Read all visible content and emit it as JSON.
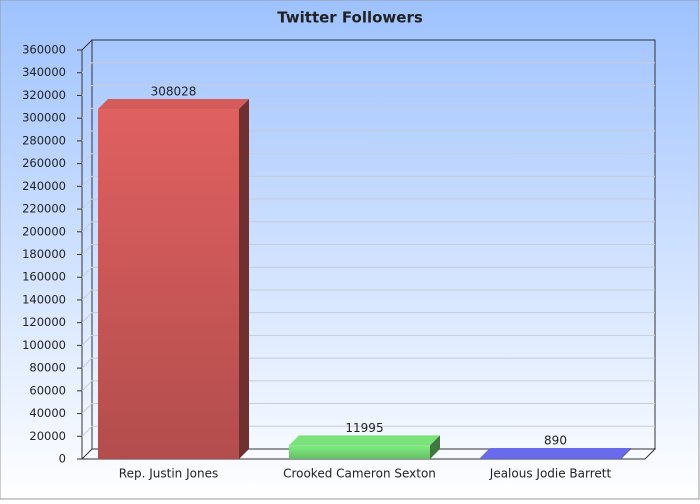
{
  "chart_data": {
    "type": "bar",
    "title": "Twitter Followers",
    "categories": [
      "Rep. Justin Jones",
      "Crooked Cameron Sexton",
      "Jealous Jodie Barrett"
    ],
    "values": [
      308028,
      11995,
      890
    ],
    "colors": [
      "#e06060",
      "#80ee80",
      "#7070f8"
    ],
    "ylim": [
      0,
      360000
    ],
    "yticks": [
      0,
      20000,
      40000,
      60000,
      80000,
      100000,
      120000,
      140000,
      160000,
      180000,
      200000,
      220000,
      240000,
      260000,
      280000,
      300000,
      320000,
      340000,
      360000
    ],
    "grid": true
  }
}
